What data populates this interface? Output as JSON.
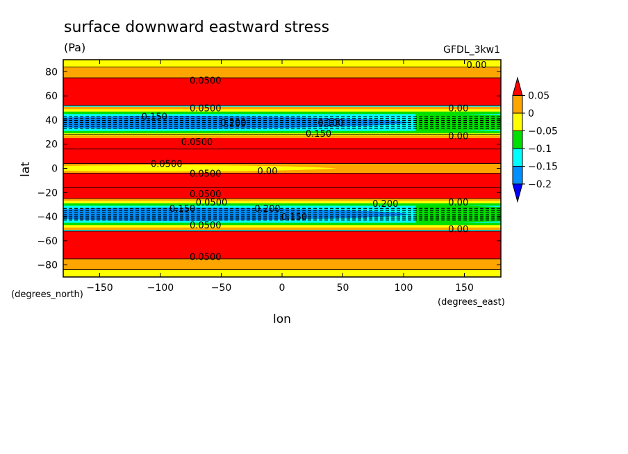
{
  "chart_data": {
    "type": "contour",
    "title": "surface downward eastward stress",
    "units": "(Pa)",
    "model_label": "GFDL_3kw1",
    "xlabel": "lon",
    "ylabel": "lat",
    "x_units": "(degrees_east)",
    "y_units": "(degrees_north)",
    "xlim": [
      -180,
      180
    ],
    "ylim": [
      -90,
      90
    ],
    "x_ticks": [
      -150,
      -100,
      -50,
      0,
      50,
      100,
      150
    ],
    "y_ticks": [
      -80,
      -60,
      -40,
      -20,
      0,
      20,
      40,
      60,
      80
    ],
    "colorbar": {
      "levels": [
        0.05,
        0,
        -0.05,
        -0.1,
        -0.15,
        -0.2
      ],
      "labels": [
        "0.05",
        "0",
        "−0.05",
        "−0.1",
        "−0.15",
        "−0.2"
      ],
      "colors": [
        "#ff0000",
        "#ffa500",
        "#ffff00",
        "#00e000",
        "#00ffff",
        "#0090ff",
        "#0000ff"
      ]
    },
    "bands": [
      {
        "lat": [
          -90,
          -84
        ],
        "level": 0
      },
      {
        "lat": [
          -84,
          -75
        ],
        "level": 1
      },
      {
        "lat": [
          -75,
          -52
        ],
        "level": 2
      },
      {
        "lat": [
          -52,
          -25
        ],
        "level": "westerly"
      },
      {
        "lat": [
          -25,
          -16
        ],
        "level": 2
      },
      {
        "lat": [
          -16,
          -4
        ],
        "level": 2
      },
      {
        "lat": [
          -4,
          4
        ],
        "level": 1
      },
      {
        "lat": [
          4,
          16
        ],
        "level": 2
      },
      {
        "lat": [
          16,
          28
        ],
        "level": 2
      },
      {
        "lat": [
          28,
          52
        ],
        "level": "westerly"
      },
      {
        "lat": [
          52,
          75
        ],
        "level": 2
      },
      {
        "lat": [
          75,
          84
        ],
        "level": 1
      },
      {
        "lat": [
          84,
          90
        ],
        "level": 0
      }
    ],
    "contour_labels": [
      {
        "text": "0.0500",
        "lon": -63,
        "lat": 73
      },
      {
        "text": "0.0500",
        "lon": -63,
        "lat": 50
      },
      {
        "text": "0.150",
        "lon": -105,
        "lat": 43
      },
      {
        "text": "0.200",
        "lon": -40,
        "lat": 38
      },
      {
        "text": "0.100",
        "lon": 40,
        "lat": 38
      },
      {
        "text": "0.150",
        "lon": 30,
        "lat": 29
      },
      {
        "text": "0.00",
        "lon": 145,
        "lat": 50
      },
      {
        "text": "0.00",
        "lon": 145,
        "lat": 27
      },
      {
        "text": "0.0500",
        "lon": -70,
        "lat": 22
      },
      {
        "text": "0.0500",
        "lon": -95,
        "lat": 4
      },
      {
        "text": "0.0500",
        "lon": -63,
        "lat": -4
      },
      {
        "text": "0.00",
        "lon": -12,
        "lat": -2
      },
      {
        "text": "0.0500",
        "lon": -63,
        "lat": -21
      },
      {
        "text": "0.0500",
        "lon": -58,
        "lat": -28
      },
      {
        "text": "0.150",
        "lon": -82,
        "lat": -33
      },
      {
        "text": "0.200",
        "lon": -12,
        "lat": -33
      },
      {
        "text": "0.200",
        "lon": 85,
        "lat": -29
      },
      {
        "text": "0.00",
        "lon": 145,
        "lat": -28
      },
      {
        "text": "0.150",
        "lon": 10,
        "lat": -40
      },
      {
        "text": "0.0500",
        "lon": -63,
        "lat": -47
      },
      {
        "text": "0.00",
        "lon": 145,
        "lat": -50
      },
      {
        "text": "0.0500",
        "lon": -63,
        "lat": -73
      },
      {
        "text": "0.00",
        "lon": 160,
        "lat": 86
      }
    ]
  }
}
